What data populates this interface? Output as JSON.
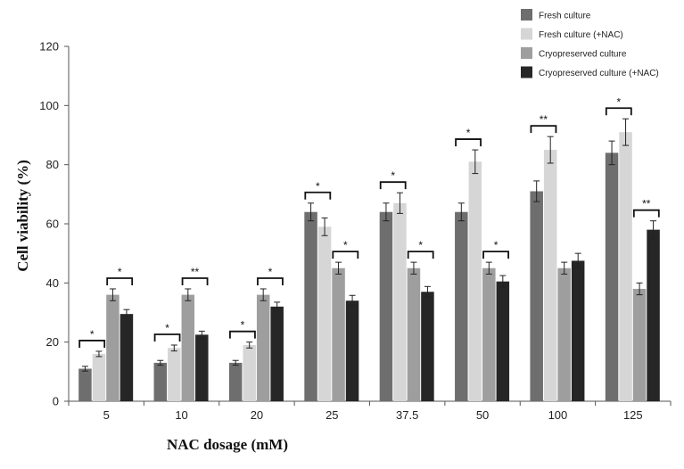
{
  "chart_data": {
    "type": "bar",
    "title": "",
    "xlabel": "NAC dosage (mM)",
    "ylabel": "Cell viability (%)",
    "ylim": [
      0,
      120
    ],
    "yticks": [
      "0",
      "20",
      "40",
      "60",
      "80",
      "100",
      "120"
    ],
    "categories": [
      "5",
      "10",
      "20",
      "25",
      "37.5",
      "50",
      "100",
      "125"
    ],
    "series": [
      {
        "name": "Fresh culture",
        "color": "#6e6e6e",
        "values": [
          11,
          13,
          13,
          64,
          64,
          64,
          71,
          84
        ],
        "errors": [
          0.8,
          0.8,
          0.8,
          3,
          3,
          3,
          3.5,
          4
        ]
      },
      {
        "name": "Fresh culture (+NAC)",
        "color": "#d6d6d6",
        "values": [
          16,
          18,
          19,
          59,
          67,
          81,
          85,
          91
        ],
        "errors": [
          0.9,
          1,
          1,
          3,
          3.5,
          4,
          4.5,
          4.5
        ]
      },
      {
        "name": "Cryopreserved culture",
        "color": "#9e9e9e",
        "values": [
          36,
          36,
          36,
          45,
          45,
          45,
          45,
          38
        ],
        "errors": [
          2,
          2,
          2,
          2,
          2,
          2,
          2,
          2
        ]
      },
      {
        "name": "Cryopreserved culture (+NAC)",
        "color": "#262626",
        "values": [
          29.5,
          22.5,
          32,
          34,
          37,
          40.5,
          47.5,
          58
        ],
        "errors": [
          1.5,
          1.2,
          1.5,
          1.8,
          1.8,
          2,
          2.5,
          3
        ]
      }
    ],
    "annotations": [
      {
        "category": "5",
        "pair": "fresh",
        "label": "*"
      },
      {
        "category": "5",
        "pair": "cryo",
        "label": "*"
      },
      {
        "category": "10",
        "pair": "fresh",
        "label": "*"
      },
      {
        "category": "10",
        "pair": "cryo",
        "label": "**"
      },
      {
        "category": "20",
        "pair": "fresh",
        "label": "*"
      },
      {
        "category": "20",
        "pair": "cryo",
        "label": "*"
      },
      {
        "category": "25",
        "pair": "fresh",
        "label": "*"
      },
      {
        "category": "25",
        "pair": "cryo",
        "label": "*"
      },
      {
        "category": "37.5",
        "pair": "fresh",
        "label": "*"
      },
      {
        "category": "37.5",
        "pair": "cryo",
        "label": "*"
      },
      {
        "category": "50",
        "pair": "fresh",
        "label": "*"
      },
      {
        "category": "50",
        "pair": "cryo",
        "label": "*"
      },
      {
        "category": "100",
        "pair": "fresh",
        "label": "**"
      },
      {
        "category": "125",
        "pair": "fresh",
        "label": "*"
      },
      {
        "category": "125",
        "pair": "cryo",
        "label": "**"
      }
    ],
    "legend_position": "top-right",
    "grid": false
  }
}
